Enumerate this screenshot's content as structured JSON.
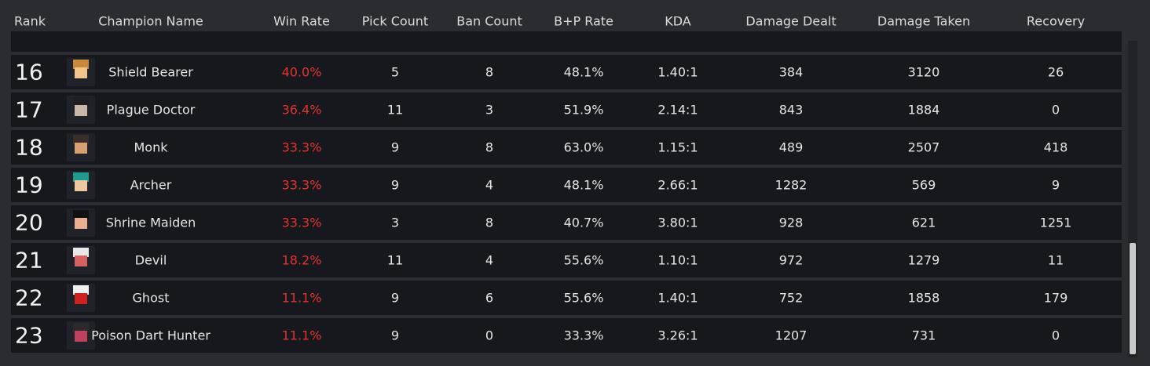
{
  "table": {
    "headers": [
      "Rank",
      "Champion Name",
      "Win Rate",
      "Pick Count",
      "Ban Count",
      "B+P Rate",
      "KDA",
      "Damage Dealt",
      "Damage Taken",
      "Recovery"
    ],
    "rows": [
      [
        "16",
        "Shield Bearer",
        "40.0%",
        "5",
        "8",
        "48.1%",
        "1.40:1",
        "384",
        "3120",
        "26"
      ],
      [
        "17",
        "Plague Doctor",
        "36.4%",
        "11",
        "3",
        "51.9%",
        "2.14:1",
        "843",
        "1884",
        "0"
      ],
      [
        "18",
        "Monk",
        "33.3%",
        "9",
        "8",
        "63.0%",
        "1.15:1",
        "489",
        "2507",
        "418"
      ],
      [
        "19",
        "Archer",
        "33.3%",
        "9",
        "4",
        "48.1%",
        "2.66:1",
        "1282",
        "569",
        "9"
      ],
      [
        "20",
        "Shrine Maiden",
        "33.3%",
        "3",
        "8",
        "40.7%",
        "3.80:1",
        "928",
        "621",
        "1251"
      ],
      [
        "21",
        "Devil",
        "18.2%",
        "11",
        "4",
        "55.6%",
        "1.10:1",
        "972",
        "1279",
        "11"
      ],
      [
        "22",
        "Ghost",
        "11.1%",
        "9",
        "6",
        "55.6%",
        "1.40:1",
        "752",
        "1858",
        "179"
      ],
      [
        "23",
        "Poison Dart Hunter",
        "11.1%",
        "9",
        "0",
        "33.3%",
        "3.26:1",
        "1207",
        "731",
        "0"
      ]
    ]
  }
}
